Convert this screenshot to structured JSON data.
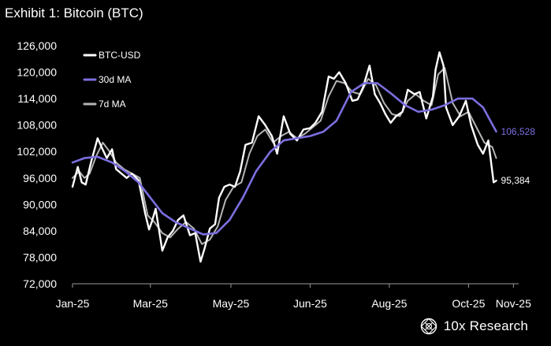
{
  "colors": {
    "background": "#000000",
    "btc": "#ffffff",
    "ma30": "#7b6fe0",
    "ma7": "#b5b5b5",
    "axis": "#9a9a9a"
  },
  "brand": {
    "name": "10x Research",
    "icon": "globe-logo-icon"
  },
  "chart_data": {
    "type": "line",
    "title": "Exhibit 1: Bitcoin (BTC)",
    "xlabel": "",
    "ylabel": "",
    "ylim": [
      72000,
      126000
    ],
    "yticks": [
      72000,
      78000,
      84000,
      90000,
      96000,
      102000,
      108000,
      114000,
      120000,
      126000
    ],
    "ytick_labels": [
      "72,000",
      "78,000",
      "84,000",
      "90,000",
      "96,000",
      "102,000",
      "108,000",
      "114,000",
      "120,000",
      "126,000"
    ],
    "xlim": [
      "2025-01-01",
      "2025-12-05"
    ],
    "xticks": [
      "2025-01-01",
      "2025-03-01",
      "2025-05-01",
      "2025-06-30",
      "2025-08-29",
      "2025-10-28",
      "2025-12-01"
    ],
    "xtick_labels": [
      "Jan-25",
      "Mar-25",
      "May-25",
      "Jun-25",
      "Aug-25",
      "Oct-25",
      "Nov-25"
    ],
    "legend_position": "top-left",
    "grid": false,
    "end_labels": [
      {
        "series": "30d MA",
        "text": "106,528"
      },
      {
        "series": "BTC-USD",
        "text": "95,384"
      }
    ],
    "series": [
      {
        "name": "BTC-USD",
        "x": [
          "2025-01-01",
          "2025-01-05",
          "2025-01-08",
          "2025-01-11",
          "2025-01-15",
          "2025-01-20",
          "2025-01-23",
          "2025-01-27",
          "2025-01-31",
          "2025-02-03",
          "2025-02-07",
          "2025-02-11",
          "2025-02-15",
          "2025-02-20",
          "2025-02-25",
          "2025-02-28",
          "2025-03-02",
          "2025-03-05",
          "2025-03-10",
          "2025-03-14",
          "2025-03-18",
          "2025-03-22",
          "2025-03-26",
          "2025-03-31",
          "2025-04-04",
          "2025-04-08",
          "2025-04-11",
          "2025-04-15",
          "2025-04-19",
          "2025-04-22",
          "2025-04-26",
          "2025-04-30",
          "2025-05-04",
          "2025-05-08",
          "2025-05-12",
          "2025-05-17",
          "2025-05-22",
          "2025-05-27",
          "2025-06-01",
          "2025-06-05",
          "2025-06-10",
          "2025-06-15",
          "2025-06-20",
          "2025-06-25",
          "2025-06-30",
          "2025-07-04",
          "2025-07-09",
          "2025-07-14",
          "2025-07-18",
          "2025-07-22",
          "2025-07-27",
          "2025-08-01",
          "2025-08-05",
          "2025-08-09",
          "2025-08-14",
          "2025-08-18",
          "2025-08-22",
          "2025-08-26",
          "2025-08-30",
          "2025-09-03",
          "2025-09-08",
          "2025-09-12",
          "2025-09-17",
          "2025-09-21",
          "2025-09-26",
          "2025-10-01",
          "2025-10-03",
          "2025-10-06",
          "2025-10-09",
          "2025-10-11",
          "2025-10-16",
          "2025-10-21",
          "2025-10-26",
          "2025-10-30",
          "2025-11-04",
          "2025-11-08",
          "2025-11-12",
          "2025-11-16",
          "2025-11-18"
        ],
        "values": [
          94000,
          98500,
          95000,
          94500,
          99500,
          105000,
          103000,
          100500,
          102500,
          98000,
          97000,
          96000,
          97000,
          95500,
          88000,
          84300,
          86000,
          89000,
          79500,
          82500,
          84000,
          86500,
          87500,
          83000,
          83500,
          77000,
          80000,
          84500,
          85500,
          91500,
          94000,
          94500,
          94000,
          97500,
          103500,
          104000,
          110000,
          108000,
          105500,
          101500,
          110000,
          106000,
          104500,
          107000,
          107300,
          108500,
          111000,
          119000,
          118500,
          120000,
          117500,
          113500,
          113800,
          116500,
          121500,
          115000,
          113000,
          110500,
          108500,
          110000,
          111000,
          116000,
          115000,
          115500,
          109500,
          114500,
          120500,
          124500,
          121500,
          112000,
          108000,
          110000,
          113500,
          108000,
          103500,
          101500,
          104500,
          95000,
          95384
        ]
      },
      {
        "name": "30d MA",
        "x": [
          "2025-01-01",
          "2025-01-10",
          "2025-01-20",
          "2025-01-31",
          "2025-02-10",
          "2025-02-20",
          "2025-03-01",
          "2025-03-10",
          "2025-03-20",
          "2025-03-31",
          "2025-04-10",
          "2025-04-20",
          "2025-04-30",
          "2025-05-10",
          "2025-05-20",
          "2025-05-31",
          "2025-06-10",
          "2025-06-20",
          "2025-06-30",
          "2025-07-10",
          "2025-07-20",
          "2025-07-31",
          "2025-08-10",
          "2025-08-20",
          "2025-08-31",
          "2025-09-10",
          "2025-09-20",
          "2025-09-30",
          "2025-10-10",
          "2025-10-20",
          "2025-10-31",
          "2025-11-08",
          "2025-11-18"
        ],
        "values": [
          99500,
          100500,
          100800,
          99500,
          97500,
          95000,
          91500,
          88000,
          86000,
          84500,
          83200,
          83500,
          86500,
          91500,
          97500,
          102000,
          104500,
          105000,
          105500,
          106500,
          109000,
          115500,
          117500,
          117500,
          115000,
          112500,
          111000,
          111500,
          112500,
          114000,
          114000,
          112000,
          106528
        ]
      },
      {
        "name": "7d MA",
        "x": [
          "2025-01-01",
          "2025-01-06",
          "2025-01-10",
          "2025-01-14",
          "2025-01-19",
          "2025-01-24",
          "2025-01-29",
          "2025-02-03",
          "2025-02-09",
          "2025-02-15",
          "2025-02-21",
          "2025-02-27",
          "2025-03-04",
          "2025-03-10",
          "2025-03-16",
          "2025-03-22",
          "2025-03-28",
          "2025-04-03",
          "2025-04-09",
          "2025-04-15",
          "2025-04-21",
          "2025-04-27",
          "2025-05-03",
          "2025-05-09",
          "2025-05-15",
          "2025-05-21",
          "2025-05-27",
          "2025-06-02",
          "2025-06-08",
          "2025-06-14",
          "2025-06-20",
          "2025-06-26",
          "2025-07-02",
          "2025-07-08",
          "2025-07-14",
          "2025-07-20",
          "2025-07-26",
          "2025-08-01",
          "2025-08-07",
          "2025-08-13",
          "2025-08-19",
          "2025-08-25",
          "2025-08-31",
          "2025-09-06",
          "2025-09-12",
          "2025-09-18",
          "2025-09-24",
          "2025-09-30",
          "2025-10-05",
          "2025-10-10",
          "2025-10-16",
          "2025-10-22",
          "2025-10-28",
          "2025-11-03",
          "2025-11-09",
          "2025-11-15",
          "2025-11-18"
        ],
        "values": [
          96000,
          97500,
          96000,
          97000,
          101000,
          104000,
          102000,
          99500,
          98000,
          97000,
          96000,
          87500,
          86000,
          83500,
          82500,
          84500,
          86000,
          84500,
          81000,
          82000,
          85000,
          91000,
          94000,
          95000,
          101500,
          105500,
          107000,
          104000,
          105500,
          106500,
          105000,
          106000,
          107500,
          109000,
          114500,
          118000,
          117500,
          115500,
          115000,
          118500,
          117000,
          113000,
          110500,
          110000,
          113500,
          115000,
          113500,
          112500,
          119500,
          121000,
          113000,
          110000,
          111000,
          107500,
          104000,
          103000,
          100500
        ]
      }
    ]
  }
}
